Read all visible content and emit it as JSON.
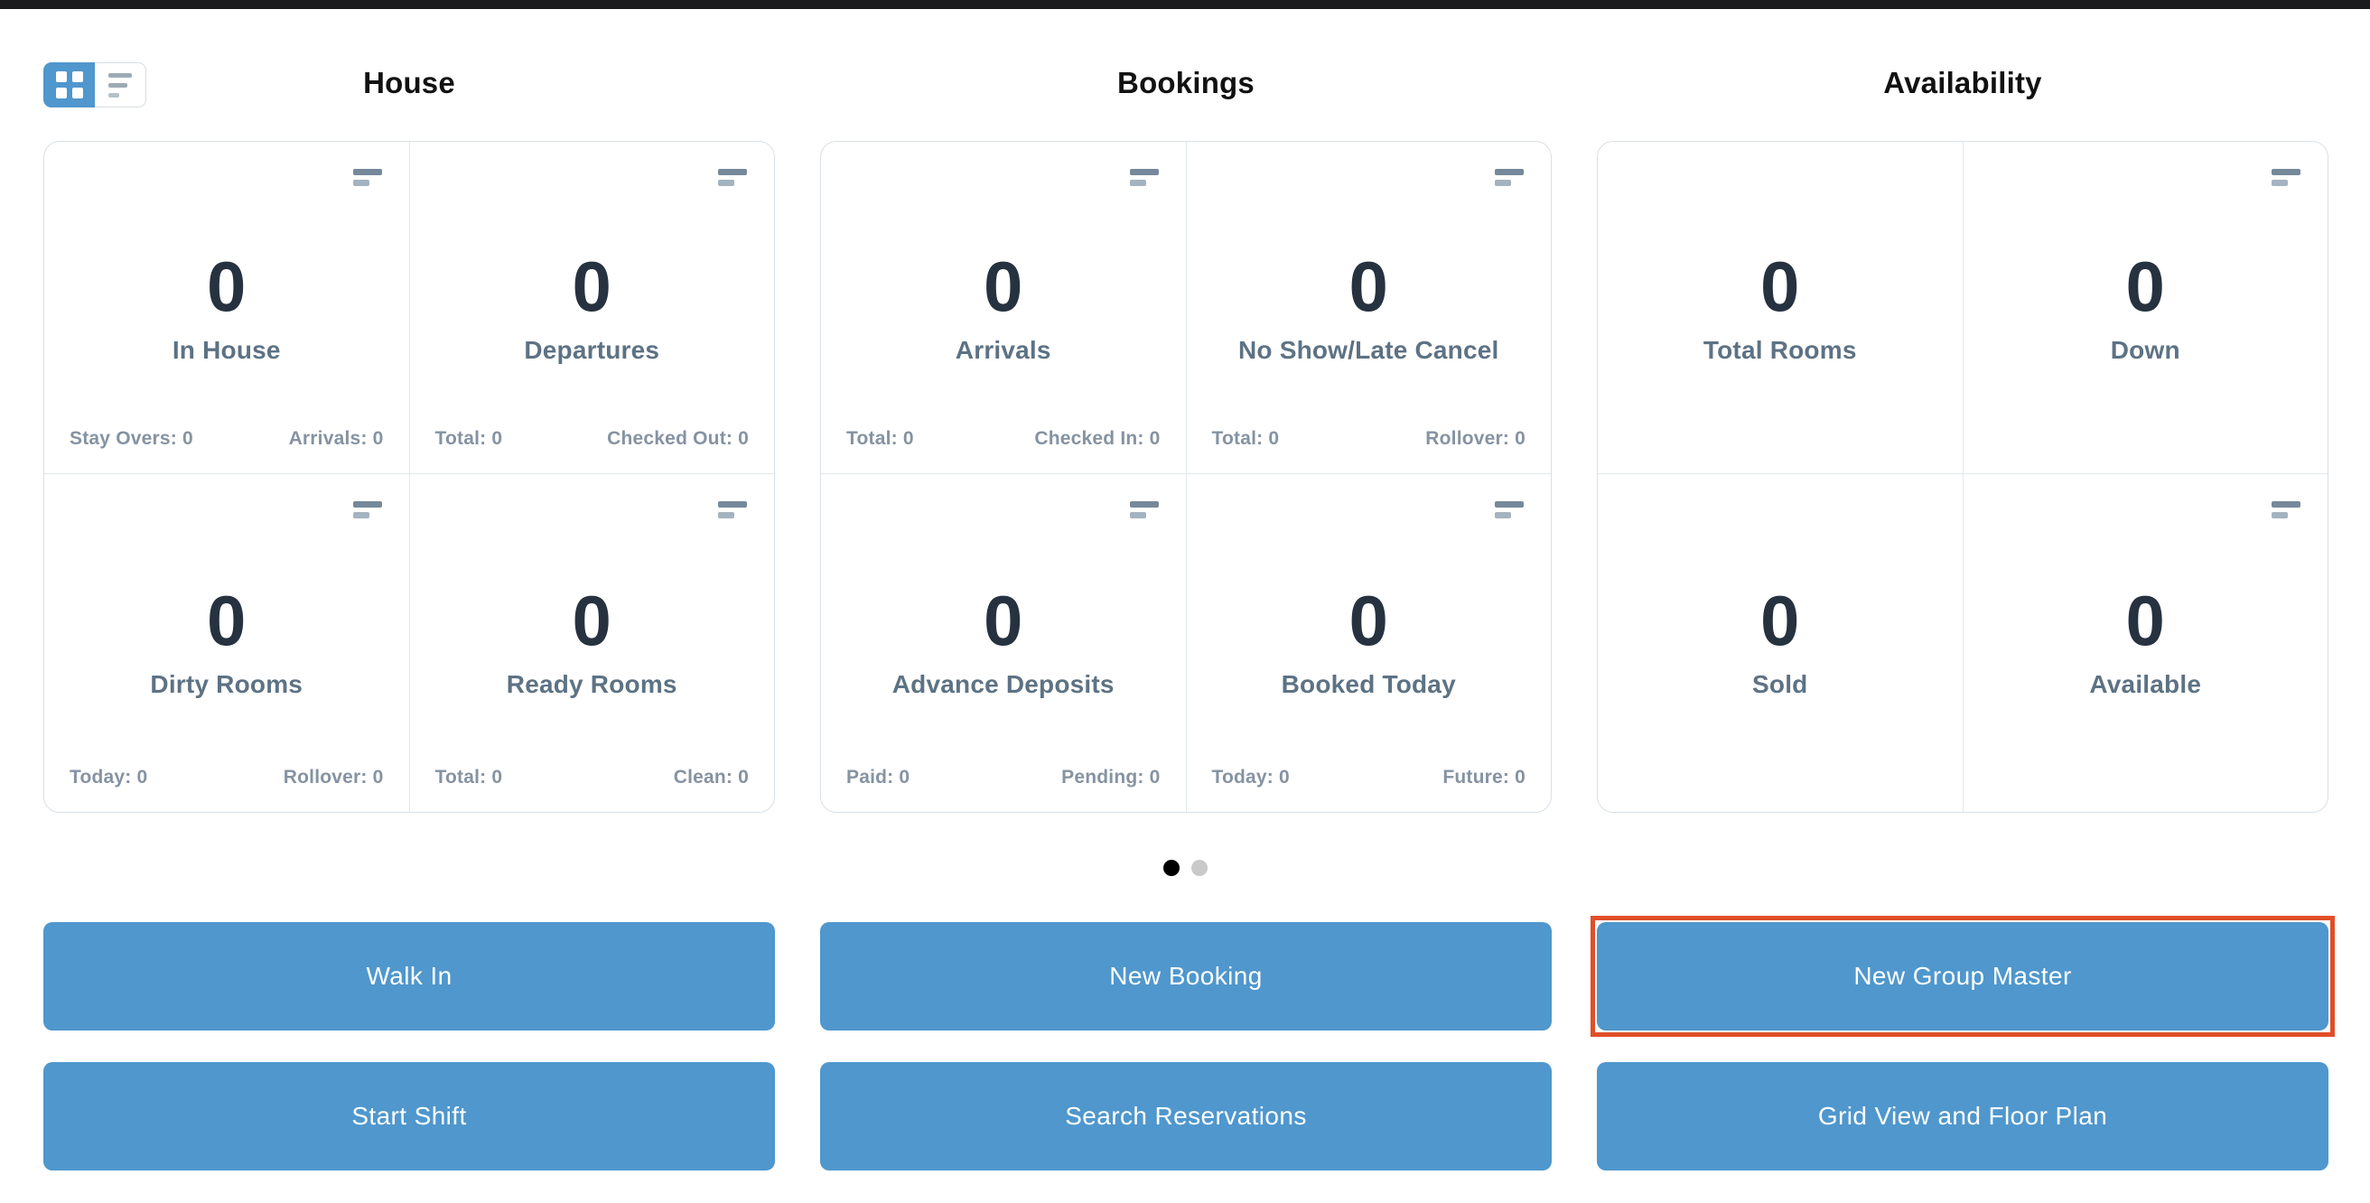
{
  "view_toggle": {
    "active": "grid",
    "options": [
      "grid",
      "list"
    ]
  },
  "groups": [
    {
      "title": "House",
      "cards": [
        {
          "value": "0",
          "label": "In House",
          "has_icon": true,
          "stats": [
            "Stay Overs: 0",
            "Arrivals: 0"
          ]
        },
        {
          "value": "0",
          "label": "Departures",
          "has_icon": true,
          "stats": [
            "Total: 0",
            "Checked Out: 0"
          ]
        },
        {
          "value": "0",
          "label": "Dirty Rooms",
          "has_icon": true,
          "stats": [
            "Today: 0",
            "Rollover: 0"
          ]
        },
        {
          "value": "0",
          "label": "Ready Rooms",
          "has_icon": true,
          "stats": [
            "Total: 0",
            "Clean: 0"
          ]
        }
      ]
    },
    {
      "title": "Bookings",
      "cards": [
        {
          "value": "0",
          "label": "Arrivals",
          "has_icon": true,
          "stats": [
            "Total: 0",
            "Checked In: 0"
          ]
        },
        {
          "value": "0",
          "label": "No Show/Late Cancel",
          "has_icon": true,
          "stats": [
            "Total: 0",
            "Rollover: 0"
          ]
        },
        {
          "value": "0",
          "label": "Advance Deposits",
          "has_icon": true,
          "stats": [
            "Paid: 0",
            "Pending: 0"
          ]
        },
        {
          "value": "0",
          "label": "Booked Today",
          "has_icon": true,
          "stats": [
            "Today: 0",
            "Future: 0"
          ]
        }
      ]
    },
    {
      "title": "Availability",
      "cards": [
        {
          "value": "0",
          "label": "Total Rooms",
          "has_icon": false,
          "stats": []
        },
        {
          "value": "0",
          "label": "Down",
          "has_icon": true,
          "stats": []
        },
        {
          "value": "0",
          "label": "Sold",
          "has_icon": false,
          "stats": []
        },
        {
          "value": "0",
          "label": "Available",
          "has_icon": true,
          "stats": []
        }
      ]
    }
  ],
  "carousel": {
    "dots": [
      {
        "state": "active"
      },
      {
        "state": "inactive"
      }
    ]
  },
  "action_buttons": [
    {
      "label": "Walk In",
      "highlighted": false
    },
    {
      "label": "New Booking",
      "highlighted": false
    },
    {
      "label": "New Group Master",
      "highlighted": true
    },
    {
      "label": "Start Shift",
      "highlighted": false
    },
    {
      "label": "Search Reservations",
      "highlighted": false
    },
    {
      "label": "Grid View and Floor Plan",
      "highlighted": false
    }
  ],
  "colors": {
    "primary_blue": "#4f97cd",
    "highlight_red": "#e04f28",
    "value_text": "#263240",
    "label_text": "#5d7284",
    "stat_text": "#8593a2",
    "title_text": "#111111",
    "card_border": "#d9e0e6",
    "top_bar": "#1b1b1e",
    "dot_active": "#000000",
    "dot_inactive": "#c9c9c9"
  }
}
